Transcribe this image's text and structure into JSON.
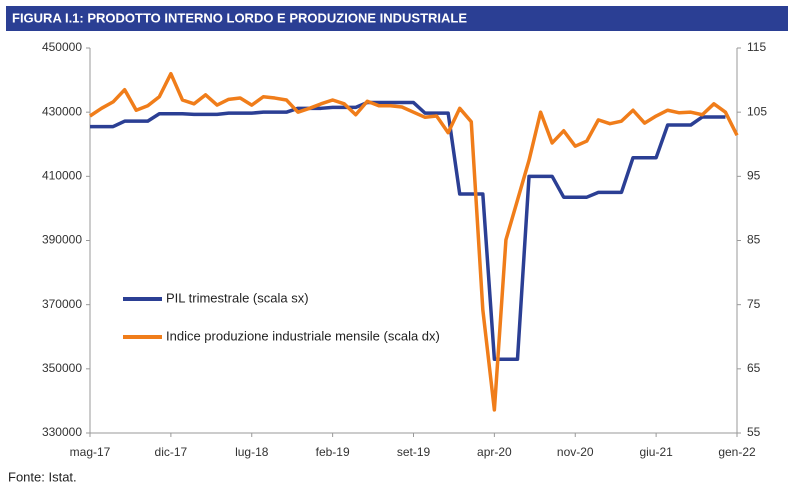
{
  "chart_data": {
    "type": "line",
    "title": "FIGURA I.1: PRODOTTO INTERNO LORDO E PRODUZIONE INDUSTRIALE",
    "source": "Fonte: Istat.",
    "categories": [
      "mag-17",
      null,
      null,
      null,
      null,
      null,
      null,
      "dic-17",
      null,
      null,
      null,
      null,
      null,
      null,
      "lug-18",
      null,
      null,
      null,
      null,
      null,
      null,
      "feb-19",
      null,
      null,
      null,
      null,
      null,
      null,
      "set-19",
      null,
      null,
      null,
      null,
      null,
      null,
      "apr-20",
      null,
      null,
      null,
      null,
      null,
      null,
      "nov-20",
      null,
      null,
      null,
      null,
      null,
      null,
      "giu-21",
      null,
      null,
      null,
      null,
      null,
      null,
      "gen-22"
    ],
    "series": [
      {
        "name": "PIL trimestrale (scala sx)",
        "color": "#2b3f94",
        "axis": "y",
        "values": [
          425500,
          425500,
          425500,
          427200,
          427200,
          427200,
          429500,
          429500,
          429500,
          429300,
          429300,
          429300,
          429700,
          429700,
          429700,
          430000,
          430000,
          430000,
          431200,
          431200,
          431200,
          431500,
          431500,
          431500,
          433000,
          433000,
          433000,
          433000,
          433000,
          429700,
          429700,
          429700,
          404500,
          404500,
          404500,
          353000,
          353000,
          353000,
          410000,
          410000,
          410000,
          403500,
          403500,
          403500,
          405000,
          405000,
          405000,
          415800,
          415800,
          415800,
          426000,
          426000,
          426000,
          428500,
          428500,
          428500,
          null
        ]
      },
      {
        "name": "Indice produzione industriale mensile (scala dx)",
        "color": "#f07d1a",
        "axis": "y2",
        "values": [
          104.4,
          105.6,
          106.6,
          108.5,
          105.3,
          106,
          107.4,
          111,
          106.9,
          106.3,
          107.7,
          106.1,
          107,
          107.2,
          106.1,
          107.4,
          107.2,
          106.9,
          105,
          105.6,
          106.3,
          106.9,
          106.3,
          104.6,
          106.7,
          106,
          106,
          105.8,
          105,
          104.2,
          104.4,
          101.8,
          105.6,
          103.5,
          74.2,
          58.6,
          85.1,
          91.3,
          97.5,
          105,
          100.2,
          102.1,
          99.7,
          100.5,
          103.8,
          103.2,
          103.6,
          105.3,
          103.3,
          104.4,
          105.3,
          104.9,
          105,
          104.6,
          106.3,
          105,
          101.4
        ]
      }
    ],
    "ylim": [
      330000,
      450000
    ],
    "yticks": [
      330000,
      350000,
      370000,
      390000,
      410000,
      430000,
      450000
    ],
    "y2lim": [
      55,
      115
    ],
    "y2ticks": [
      55,
      65,
      75,
      85,
      95,
      105,
      115
    ],
    "grid": false
  }
}
